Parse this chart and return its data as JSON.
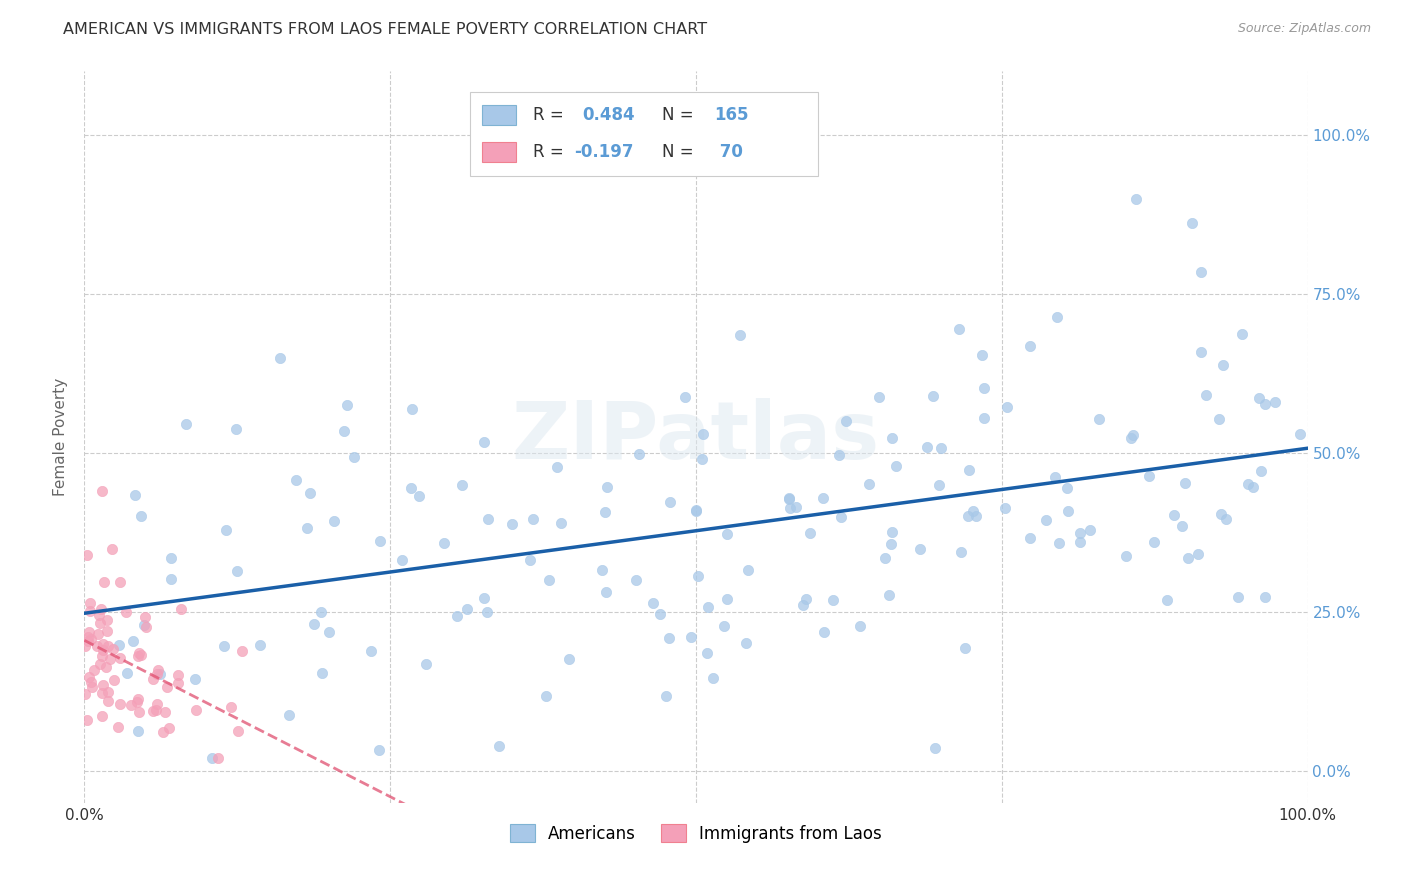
{
  "title": "AMERICAN VS IMMIGRANTS FROM LAOS FEMALE POVERTY CORRELATION CHART",
  "source": "Source: ZipAtlas.com",
  "ylabel": "Female Poverty",
  "xlim": [
    0.0,
    1.0
  ],
  "ylim": [
    -0.05,
    1.1
  ],
  "r_americans": 0.484,
  "n_americans": 165,
  "r_laos": -0.197,
  "n_laos": 70,
  "scatter_color_americans": "#a8c8e8",
  "scatter_color_laos": "#f4a0b8",
  "trend_color_americans": "#1a5fa8",
  "trend_color_laos": "#e05070",
  "watermark_text": "ZIPatlas",
  "title_fontsize": 11.5,
  "source_fontsize": 9,
  "axis_label_color": "#5b9bd5",
  "background_color": "#ffffff",
  "grid_color": "#cccccc"
}
